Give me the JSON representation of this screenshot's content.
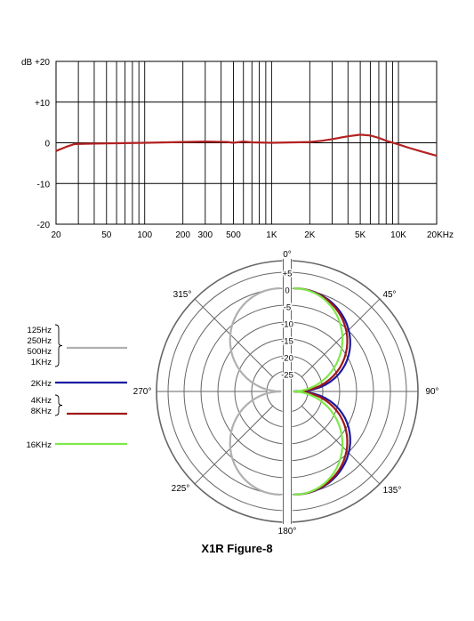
{
  "chart_data": [
    {
      "type": "line",
      "x_scale": "log",
      "xlim": [
        20,
        20000
      ],
      "ylim": [
        -20,
        20
      ],
      "grid": true,
      "ylabel": "dB",
      "y_ticks": [
        {
          "value": 20,
          "label": "+20"
        },
        {
          "value": 10,
          "label": "+10"
        },
        {
          "value": 0,
          "label": "0"
        },
        {
          "value": -10,
          "label": "-10"
        },
        {
          "value": -20,
          "label": "-20"
        }
      ],
      "x_ticks": [
        {
          "value": 20,
          "label": "20"
        },
        {
          "value": 50,
          "label": "50"
        },
        {
          "value": 100,
          "label": "100"
        },
        {
          "value": 200,
          "label": "200"
        },
        {
          "value": 300,
          "label": "300"
        },
        {
          "value": 500,
          "label": "500"
        },
        {
          "value": 1000,
          "label": "1K"
        },
        {
          "value": 2000,
          "label": "2K"
        },
        {
          "value": 5000,
          "label": "5K"
        },
        {
          "value": 10000,
          "label": "10K"
        },
        {
          "value": 20000,
          "label": "20KHz"
        }
      ],
      "series": [
        {
          "color": "#b22222",
          "points": [
            [
              20,
              -2
            ],
            [
              24,
              -1
            ],
            [
              28,
              -0.3
            ],
            [
              40,
              -0.2
            ],
            [
              60,
              -0.1
            ],
            [
              100,
              0
            ],
            [
              200,
              0.2
            ],
            [
              300,
              0.3
            ],
            [
              450,
              0.2
            ],
            [
              500,
              0
            ],
            [
              600,
              0.3
            ],
            [
              700,
              0.1
            ],
            [
              1000,
              0
            ],
            [
              1500,
              0.1
            ],
            [
              2000,
              0.2
            ],
            [
              2500,
              0.5
            ],
            [
              3000,
              0.9
            ],
            [
              4000,
              1.6
            ],
            [
              5000,
              2
            ],
            [
              6000,
              1.8
            ],
            [
              7000,
              1.2
            ],
            [
              8000,
              0.5
            ],
            [
              10000,
              -0.4
            ],
            [
              12000,
              -1.2
            ],
            [
              15000,
              -2.1
            ],
            [
              20000,
              -3.2
            ]
          ]
        }
      ]
    },
    {
      "type": "polar",
      "r_ticks": [
        5,
        0,
        -5,
        -10,
        -15,
        -20,
        -25
      ],
      "r_tick_labels": [
        "+5",
        "0",
        "-5",
        "-10",
        "-15",
        "-20",
        "-25"
      ],
      "angle_labels": [
        {
          "angle": 0,
          "label": "0°"
        },
        {
          "angle": 45,
          "label": "45°"
        },
        {
          "angle": 90,
          "label": "90°"
        },
        {
          "angle": 135,
          "label": "135°"
        },
        {
          "angle": 180,
          "label": "180°"
        },
        {
          "angle": 225,
          "label": "225°"
        },
        {
          "angle": 270,
          "label": "270°"
        },
        {
          "angle": 315,
          "label": "315°"
        }
      ],
      "legend": [
        {
          "labels": [
            "125Hz",
            "250Hz",
            "500Hz",
            "1KHz"
          ],
          "color": "#b0b0b0"
        },
        {
          "labels": [
            "2KHz"
          ],
          "color": "#1a1aa0"
        },
        {
          "labels": [
            "4KHz",
            "8KHz"
          ],
          "color": "#a01818"
        },
        {
          "labels": [
            "16KHz"
          ],
          "color": "#7ee84a"
        }
      ],
      "series": [
        {
          "name": "125Hz, 250Hz, 500Hz, 1KHz",
          "color": "#b0b0b0",
          "side": "left",
          "front_db": 0,
          "pattern_pow": 1.0
        },
        {
          "name": "2KHz",
          "color": "#1a1aa0",
          "side": "right",
          "front_db": 0,
          "pattern_pow": 0.72
        },
        {
          "name": "4KHz, 8KHz",
          "color": "#a01818",
          "side": "right",
          "front_db": 0,
          "pattern_pow": 0.85
        },
        {
          "name": "16KHz",
          "color": "#7ee84a",
          "side": "right",
          "front_db": 0,
          "pattern_pow": 1.12
        }
      ],
      "title": "X1R Figure-8"
    }
  ]
}
